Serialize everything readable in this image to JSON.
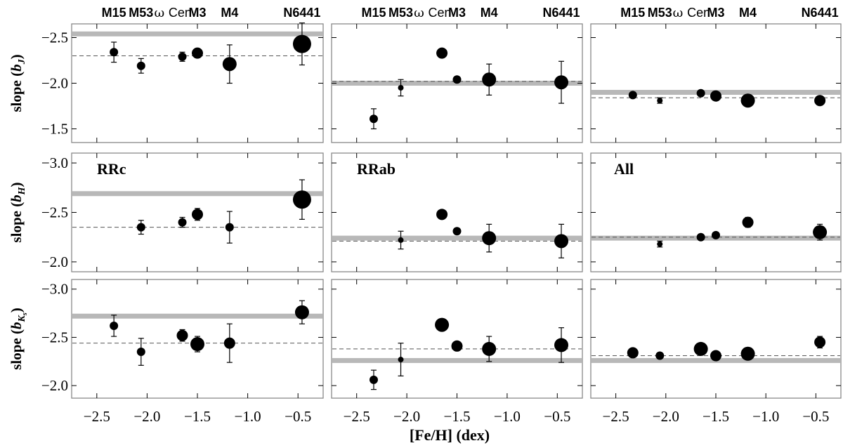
{
  "figure": {
    "x_axis_label": "[Fe/H] (dex)",
    "y_axis_labels": [
      {
        "main": "slope (",
        "sym": "b",
        "sub": "J",
        "close": ")"
      },
      {
        "main": "slope (",
        "sym": "b",
        "sub": "H",
        "close": ")"
      },
      {
        "main": "slope (",
        "sym": "b",
        "sub": "K",
        "subsub": "s",
        "close": ")"
      }
    ],
    "cluster_labels": [
      {
        "name": "M15",
        "feh": -2.33
      },
      {
        "name": "M53",
        "feh": -2.06
      },
      {
        "name": "ω",
        "feh": -1.75,
        "rest": "Cen"
      },
      {
        "name": "M3",
        "feh": -1.5
      },
      {
        "name": "M4",
        "feh": -1.18
      },
      {
        "name": "N6441",
        "feh": -0.46
      }
    ],
    "panel_labels": [
      "RRc",
      "RRab",
      "All"
    ],
    "colors": {
      "points": "#000000",
      "band": "#b8b8b8",
      "dashed": "#555555",
      "frame": "#888888"
    }
  },
  "chart_data": [
    {
      "type": "scatter",
      "row": "J",
      "col": "RRc",
      "xlim": [
        -2.75,
        -0.25
      ],
      "ylim": [
        -1.35,
        -2.65
      ],
      "yticks": [
        -1.5,
        -2.0,
        -2.5
      ],
      "xticks": [
        -2.5,
        -2.0,
        -1.5,
        -1.0,
        -0.5
      ],
      "band": -2.54,
      "dashed": -2.3,
      "points": [
        {
          "x": -2.33,
          "y": -2.34,
          "err": 0.11,
          "size": "small"
        },
        {
          "x": -2.06,
          "y": -2.19,
          "err": 0.08,
          "size": "small"
        },
        {
          "x": -1.65,
          "y": -2.29,
          "err": 0.05,
          "size": "small"
        },
        {
          "x": -1.5,
          "y": -2.33,
          "err": 0.05,
          "size": "medium"
        },
        {
          "x": -1.18,
          "y": -2.21,
          "err": 0.21,
          "size": "large"
        },
        {
          "x": -0.46,
          "y": -2.43,
          "err": 0.23,
          "size": "xlarge"
        }
      ]
    },
    {
      "type": "scatter",
      "row": "J",
      "col": "RRab",
      "xlim": [
        -2.75,
        -0.25
      ],
      "ylim": [
        -1.35,
        -2.65
      ],
      "yticks": [
        -1.5,
        -2.0,
        -2.5
      ],
      "xticks": [
        -2.5,
        -2.0,
        -1.5,
        -1.0,
        -0.5
      ],
      "band": -2.0,
      "dashed": -2.02,
      "points": [
        {
          "x": -2.33,
          "y": -1.61,
          "err": 0.11,
          "size": "small"
        },
        {
          "x": -2.06,
          "y": -1.95,
          "err": 0.09,
          "size": "tiny"
        },
        {
          "x": -1.65,
          "y": -2.33,
          "err": 0.04,
          "size": "medium"
        },
        {
          "x": -1.5,
          "y": -2.04,
          "err": 0.03,
          "size": "small"
        },
        {
          "x": -1.18,
          "y": -2.04,
          "err": 0.17,
          "size": "large"
        },
        {
          "x": -0.46,
          "y": -2.01,
          "err": 0.23,
          "size": "large"
        }
      ]
    },
    {
      "type": "scatter",
      "row": "J",
      "col": "All",
      "xlim": [
        -2.75,
        -0.25
      ],
      "ylim": [
        -1.35,
        -2.65
      ],
      "yticks": [
        -1.5,
        -2.0,
        -2.5
      ],
      "xticks": [
        -2.5,
        -2.0,
        -1.5,
        -1.0,
        -0.5
      ],
      "band": -1.9,
      "dashed": -1.84,
      "points": [
        {
          "x": -2.33,
          "y": -1.87,
          "err": 0.03,
          "size": "small"
        },
        {
          "x": -2.06,
          "y": -1.81,
          "err": 0.03,
          "size": "tiny"
        },
        {
          "x": -1.65,
          "y": -1.89,
          "err": 0.01,
          "size": "small"
        },
        {
          "x": -1.5,
          "y": -1.86,
          "err": 0.02,
          "size": "medium"
        },
        {
          "x": -1.18,
          "y": -1.81,
          "err": 0.05,
          "size": "large"
        },
        {
          "x": -0.46,
          "y": -1.81,
          "err": 0.05,
          "size": "medium"
        }
      ]
    },
    {
      "type": "scatter",
      "row": "H",
      "col": "RRc",
      "xlim": [
        -2.75,
        -0.25
      ],
      "ylim": [
        -1.9,
        -3.1
      ],
      "yticks": [
        -2.0,
        -2.5,
        -3.0
      ],
      "xticks": [
        -2.5,
        -2.0,
        -1.5,
        -1.0,
        -0.5
      ],
      "band": -2.69,
      "dashed": -2.35,
      "points": [
        {
          "x": -2.06,
          "y": -2.35,
          "err": 0.07,
          "size": "small"
        },
        {
          "x": -1.65,
          "y": -2.4,
          "err": 0.05,
          "size": "small"
        },
        {
          "x": -1.5,
          "y": -2.48,
          "err": 0.06,
          "size": "medium"
        },
        {
          "x": -1.18,
          "y": -2.35,
          "err": 0.16,
          "size": "small"
        },
        {
          "x": -0.46,
          "y": -2.63,
          "err": 0.2,
          "size": "xlarge"
        }
      ]
    },
    {
      "type": "scatter",
      "row": "H",
      "col": "RRab",
      "xlim": [
        -2.75,
        -0.25
      ],
      "ylim": [
        -1.9,
        -3.1
      ],
      "yticks": [
        -2.0,
        -2.5,
        -3.0
      ],
      "xticks": [
        -2.5,
        -2.0,
        -1.5,
        -1.0,
        -0.5
      ],
      "band": -2.24,
      "dashed": -2.21,
      "points": [
        {
          "x": -2.06,
          "y": -2.22,
          "err": 0.09,
          "size": "tiny"
        },
        {
          "x": -1.65,
          "y": -2.48,
          "err": 0.03,
          "size": "medium"
        },
        {
          "x": -1.5,
          "y": -2.31,
          "err": 0.03,
          "size": "small"
        },
        {
          "x": -1.18,
          "y": -2.24,
          "err": 0.14,
          "size": "large"
        },
        {
          "x": -0.46,
          "y": -2.21,
          "err": 0.17,
          "size": "large"
        }
      ]
    },
    {
      "type": "scatter",
      "row": "H",
      "col": "All",
      "xlim": [
        -2.75,
        -0.25
      ],
      "ylim": [
        -1.9,
        -3.1
      ],
      "yticks": [
        -2.0,
        -2.5,
        -3.0
      ],
      "xticks": [
        -2.5,
        -2.0,
        -1.5,
        -1.0,
        -0.5
      ],
      "band": -2.24,
      "dashed": -2.25,
      "points": [
        {
          "x": -2.06,
          "y": -2.18,
          "err": 0.03,
          "size": "tiny"
        },
        {
          "x": -1.65,
          "y": -2.25,
          "err": 0.01,
          "size": "small"
        },
        {
          "x": -1.5,
          "y": -2.27,
          "err": 0.01,
          "size": "small"
        },
        {
          "x": -1.18,
          "y": -2.4,
          "err": 0.05,
          "size": "medium"
        },
        {
          "x": -0.46,
          "y": -2.3,
          "err": 0.08,
          "size": "large"
        }
      ]
    },
    {
      "type": "scatter",
      "row": "Ks",
      "col": "RRc",
      "xlim": [
        -2.75,
        -0.25
      ],
      "ylim": [
        -1.87,
        -3.1
      ],
      "yticks": [
        -2.0,
        -2.5,
        -3.0
      ],
      "xticks": [
        -2.5,
        -2.0,
        -1.5,
        -1.0,
        -0.5
      ],
      "band": -2.72,
      "dashed": -2.44,
      "points": [
        {
          "x": -2.33,
          "y": -2.62,
          "err": 0.11,
          "size": "small"
        },
        {
          "x": -2.06,
          "y": -2.35,
          "err": 0.14,
          "size": "small"
        },
        {
          "x": -1.65,
          "y": -2.52,
          "err": 0.06,
          "size": "medium"
        },
        {
          "x": -1.5,
          "y": -2.43,
          "err": 0.08,
          "size": "large"
        },
        {
          "x": -1.18,
          "y": -2.44,
          "err": 0.2,
          "size": "medium"
        },
        {
          "x": -0.46,
          "y": -2.76,
          "err": 0.12,
          "size": "large"
        }
      ]
    },
    {
      "type": "scatter",
      "row": "Ks",
      "col": "RRab",
      "xlim": [
        -2.75,
        -0.25
      ],
      "ylim": [
        -1.87,
        -3.1
      ],
      "yticks": [
        -2.0,
        -2.5,
        -3.0
      ],
      "xticks": [
        -2.5,
        -2.0,
        -1.5,
        -1.0,
        -0.5
      ],
      "band": -2.26,
      "dashed": -2.38,
      "points": [
        {
          "x": -2.33,
          "y": -2.06,
          "err": 0.1,
          "size": "small"
        },
        {
          "x": -2.06,
          "y": -2.27,
          "err": 0.17,
          "size": "tiny"
        },
        {
          "x": -1.65,
          "y": -2.63,
          "err": 0.05,
          "size": "large"
        },
        {
          "x": -1.5,
          "y": -2.41,
          "err": 0.04,
          "size": "medium"
        },
        {
          "x": -1.18,
          "y": -2.38,
          "err": 0.13,
          "size": "large"
        },
        {
          "x": -0.46,
          "y": -2.42,
          "err": 0.18,
          "size": "large"
        }
      ]
    },
    {
      "type": "scatter",
      "row": "Ks",
      "col": "All",
      "xlim": [
        -2.75,
        -0.25
      ],
      "ylim": [
        -1.87,
        -3.1
      ],
      "yticks": [
        -2.0,
        -2.5,
        -3.0
      ],
      "xticks": [
        -2.5,
        -2.0,
        -1.5,
        -1.0,
        -0.5
      ],
      "band": -2.26,
      "dashed": -2.31,
      "points": [
        {
          "x": -2.33,
          "y": -2.34,
          "err": 0.04,
          "size": "medium"
        },
        {
          "x": -2.06,
          "y": -2.31,
          "err": 0.03,
          "size": "small"
        },
        {
          "x": -1.65,
          "y": -2.38,
          "err": 0.01,
          "size": "large"
        },
        {
          "x": -1.5,
          "y": -2.31,
          "err": 0.01,
          "size": "medium"
        },
        {
          "x": -1.18,
          "y": -2.33,
          "err": 0.06,
          "size": "large"
        },
        {
          "x": -0.46,
          "y": -2.45,
          "err": 0.06,
          "size": "medium"
        }
      ]
    }
  ]
}
